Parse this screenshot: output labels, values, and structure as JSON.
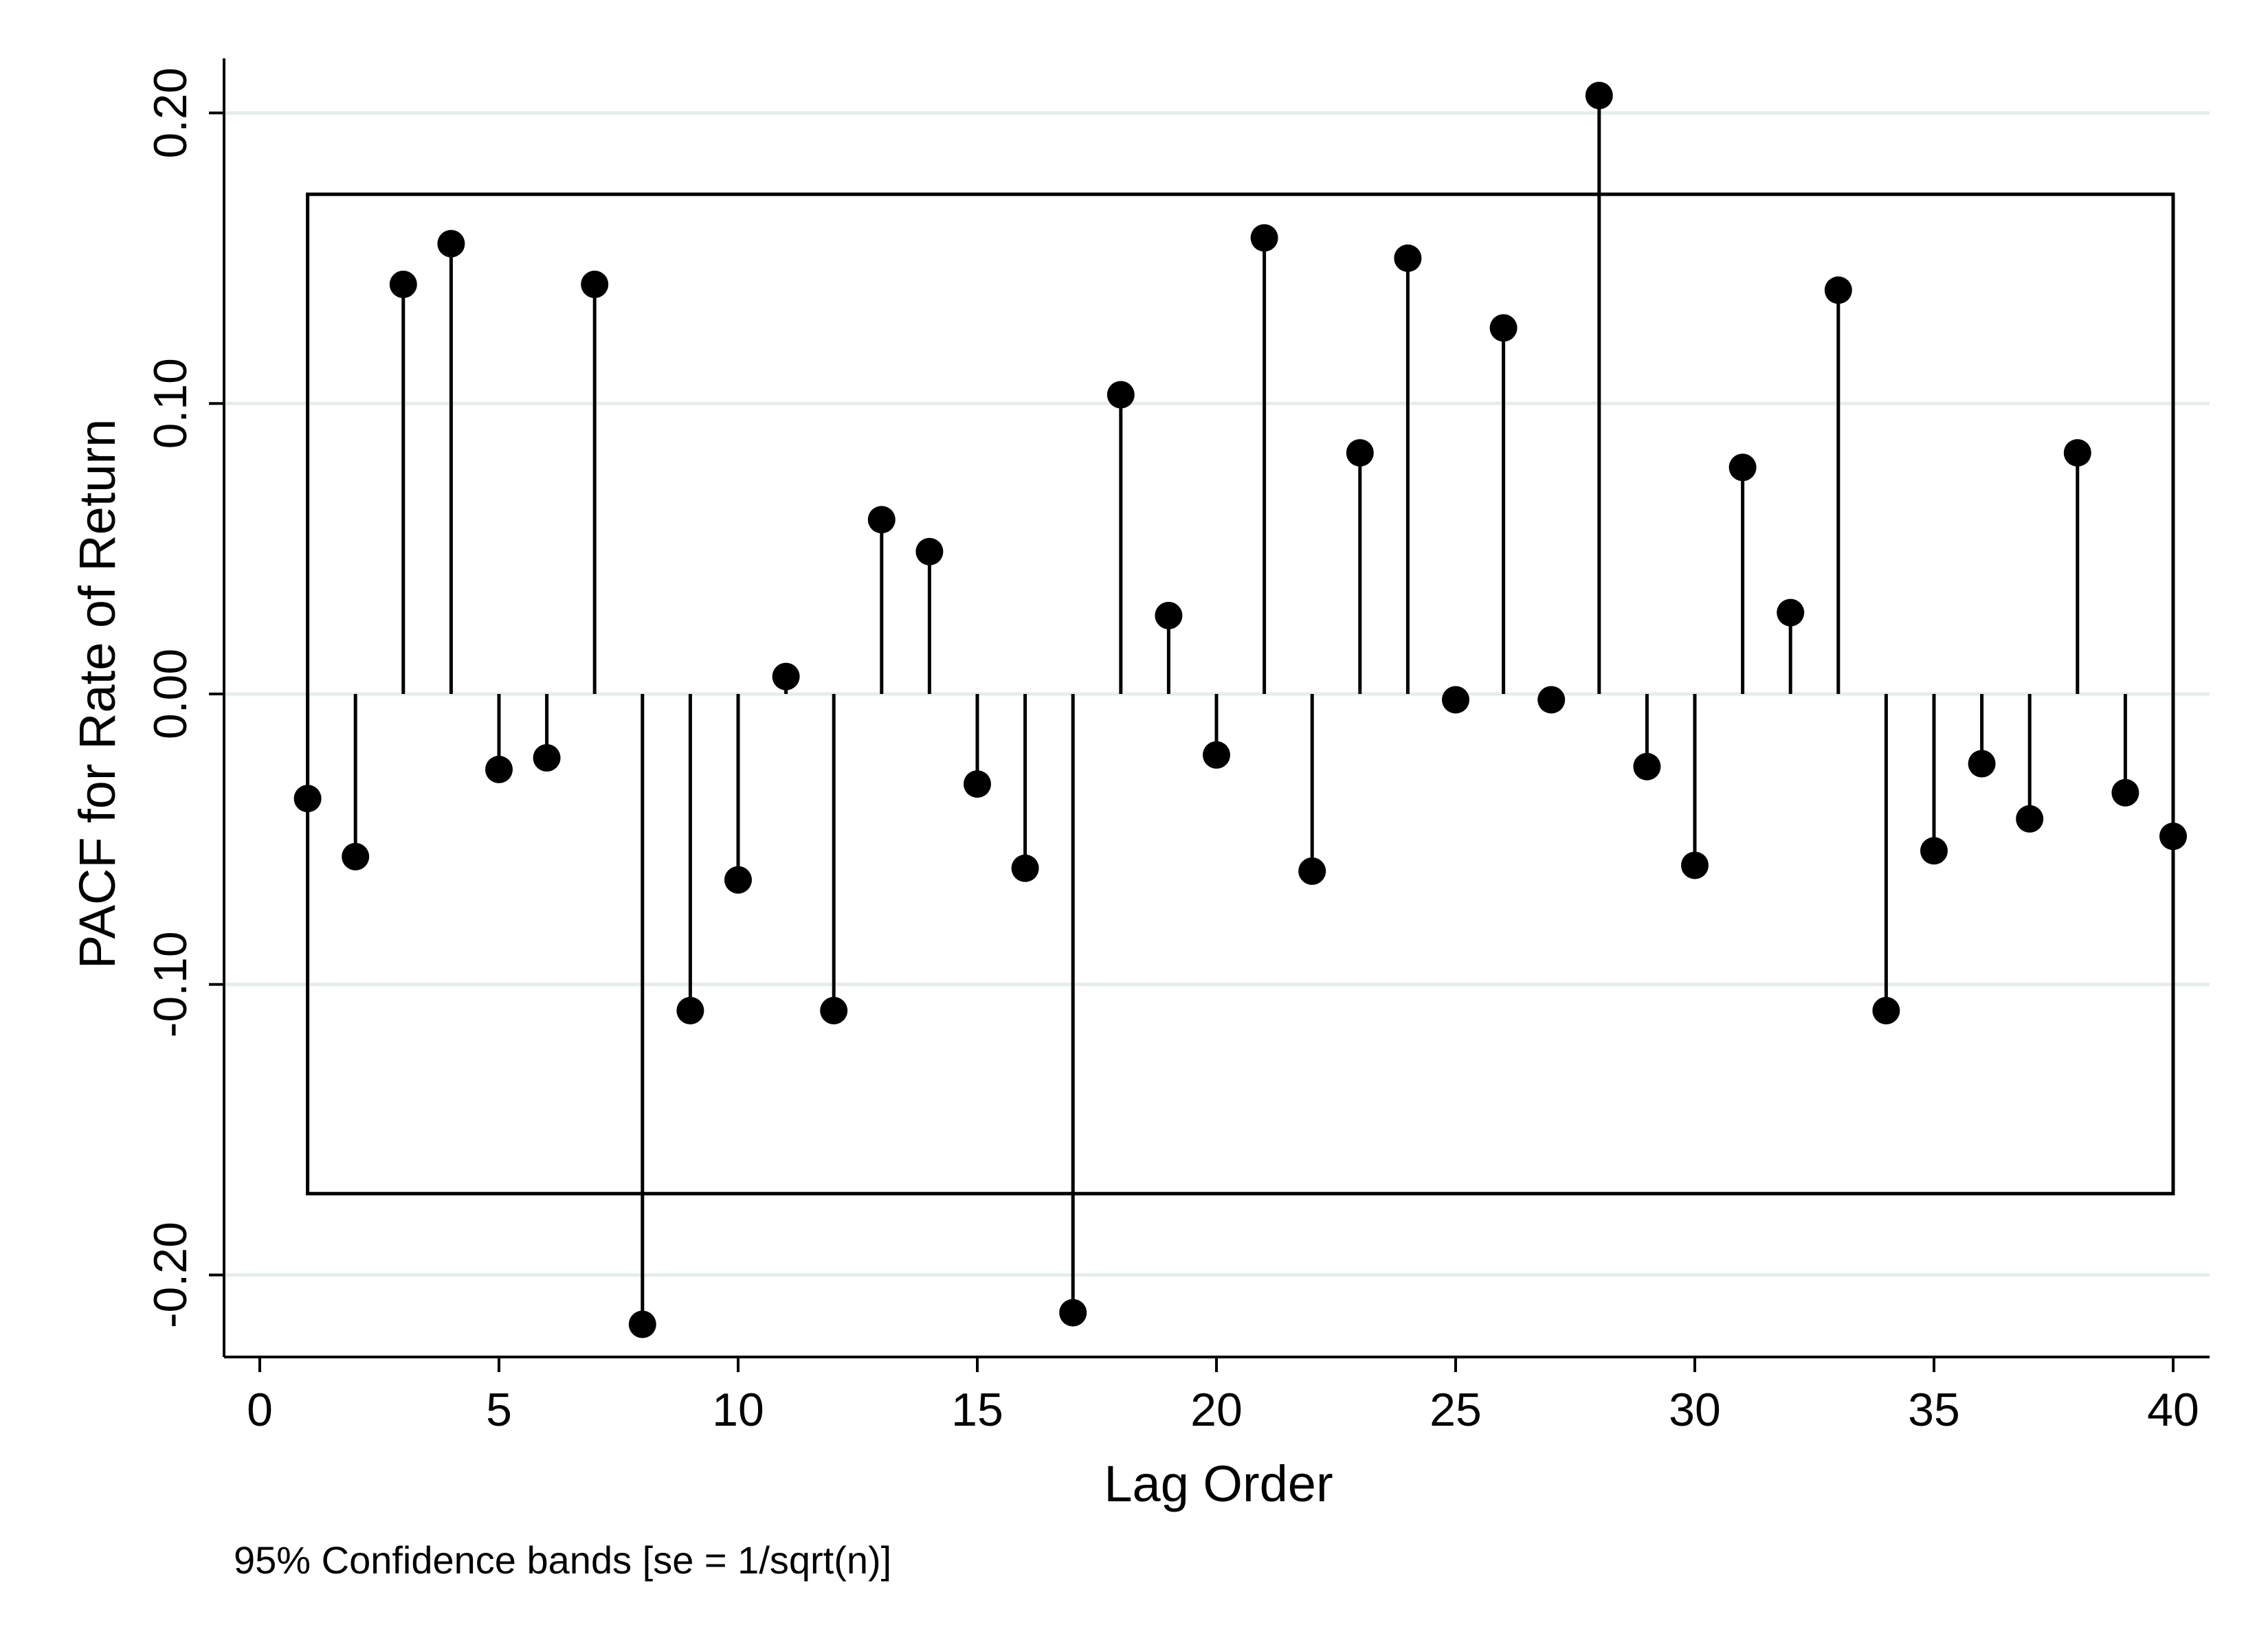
{
  "chart_data": {
    "type": "stem",
    "title": "",
    "xlabel": "Lag Order",
    "ylabel": "PACF for Rate of Return",
    "note": "95% Confidence bands [se = 1/sqrt(n)]",
    "xlim": [
      0,
      40
    ],
    "ylim": [
      -0.22,
      0.21
    ],
    "xticks": [
      0,
      5,
      10,
      15,
      20,
      25,
      30,
      35,
      40
    ],
    "xtick_labels": [
      "0",
      "5",
      "10",
      "15",
      "20",
      "25",
      "30",
      "35",
      "40"
    ],
    "yticks": [
      0.2,
      0.1,
      0.0,
      -0.1,
      -0.2
    ],
    "ytick_labels": [
      "0.20",
      "0.10",
      "0.00",
      "-0.10",
      "-0.20"
    ],
    "confidence_band": {
      "lower": -0.172,
      "upper": 0.172,
      "from_lag": 1,
      "to_lag": 40
    },
    "x": [
      1,
      2,
      3,
      4,
      5,
      6,
      7,
      8,
      9,
      10,
      11,
      12,
      13,
      14,
      15,
      16,
      17,
      18,
      19,
      20,
      21,
      22,
      23,
      24,
      25,
      26,
      27,
      28,
      29,
      30,
      31,
      32,
      33,
      34,
      35,
      36,
      37,
      38,
      39,
      40
    ],
    "values": [
      -0.036,
      -0.056,
      0.141,
      0.155,
      -0.026,
      -0.022,
      0.141,
      -0.217,
      -0.109,
      -0.064,
      0.006,
      -0.109,
      0.06,
      0.049,
      -0.031,
      -0.06,
      -0.213,
      0.103,
      0.027,
      -0.021,
      0.157,
      -0.061,
      0.083,
      0.15,
      -0.002,
      0.126,
      -0.002,
      0.206,
      -0.025,
      -0.059,
      0.078,
      0.028,
      0.139,
      -0.109,
      -0.054,
      -0.024,
      -0.043,
      0.083,
      -0.034,
      -0.049
    ],
    "colors": {
      "marker": "#000000",
      "grid": "#e6ecec",
      "axis": "#000000",
      "band": "#000000"
    }
  }
}
